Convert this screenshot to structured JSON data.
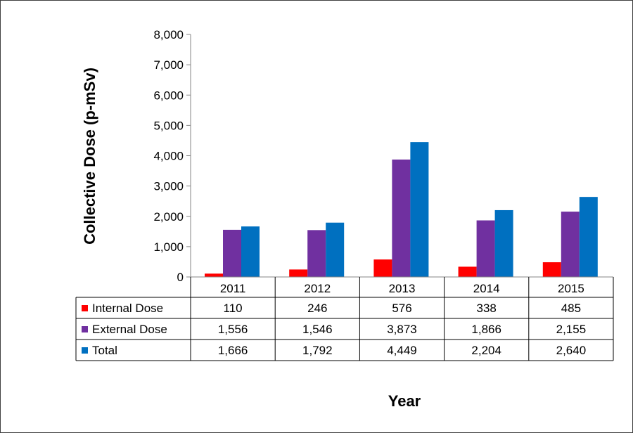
{
  "chart_data": {
    "type": "bar",
    "xlabel": "Year",
    "ylabel": "Collective Dose (p-mSv)",
    "ylim": [
      0,
      8000
    ],
    "yticks": [
      "0",
      "1,000",
      "2,000",
      "3,000",
      "4,000",
      "5,000",
      "6,000",
      "7,000",
      "8,000"
    ],
    "categories": [
      "2011",
      "2012",
      "2013",
      "2014",
      "2015"
    ],
    "grid": false,
    "legend": "data-table",
    "series": [
      {
        "name": "Internal Dose",
        "color": "#ff0000",
        "values": [
          110,
          246,
          576,
          338,
          485
        ],
        "labels": [
          "110",
          "246",
          "576",
          "338",
          "485"
        ]
      },
      {
        "name": "External Dose",
        "color": "#7030a0",
        "values": [
          1556,
          1546,
          3873,
          1866,
          2155
        ],
        "labels": [
          "1,556",
          "1,546",
          "3,873",
          "1,866",
          "2,155"
        ]
      },
      {
        "name": "Total",
        "color": "#0070c0",
        "values": [
          1666,
          1792,
          4449,
          2204,
          2640
        ],
        "labels": [
          "1,666",
          "1,792",
          "4,449",
          "2,204",
          "2,640"
        ]
      }
    ]
  }
}
